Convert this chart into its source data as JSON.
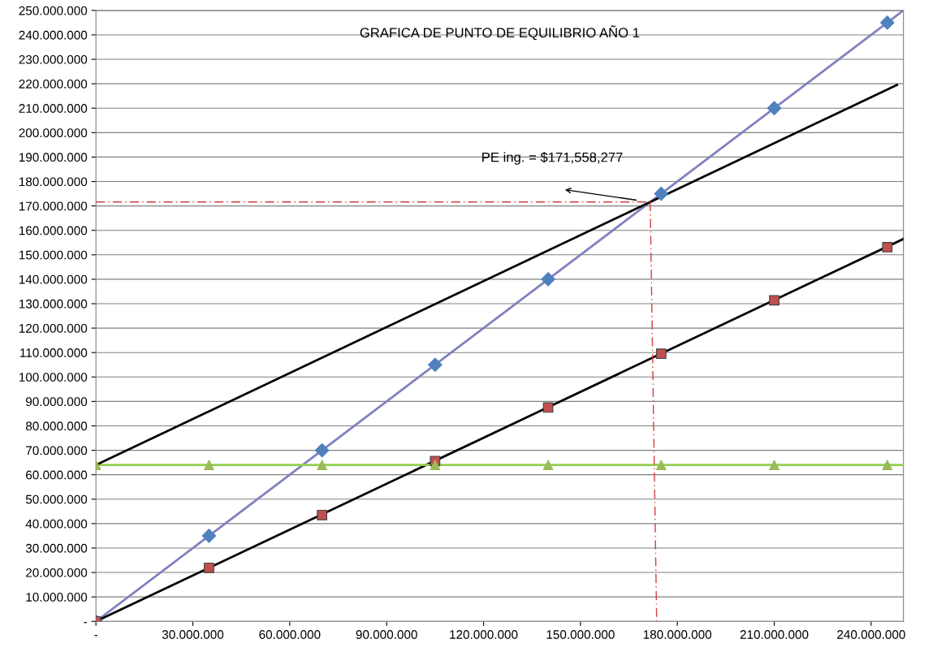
{
  "chart_data": {
    "type": "scatter",
    "title": "GRAFICA DE PUNTO DE EQUILIBRIO AÑO 1",
    "series": [
      {
        "type": "line",
        "color": "#8080c0",
        "x": [
          0,
          250000000
        ],
        "values": [
          0,
          250000000
        ]
      },
      {
        "type": "line",
        "color": "#000000",
        "x": [
          0,
          250000000
        ],
        "values": [
          0,
          156500000
        ]
      },
      {
        "type": "line",
        "color": "#92d050",
        "x": [
          0,
          250000000
        ],
        "values": [
          64000000,
          64000000
        ]
      },
      {
        "type": "line",
        "color": "#000000",
        "x": [
          0,
          248000000
        ],
        "values": [
          64000000,
          219500000
        ]
      },
      {
        "type": "line",
        "color": "#d04040",
        "line_style": "dashed",
        "x": [
          0,
          171600000
        ],
        "values": [
          171600000,
          171600000
        ]
      },
      {
        "type": "line",
        "color": "#d04040",
        "line_style": "dashed",
        "x": [
          171600000,
          173600000
        ],
        "values": [
          171600000,
          0
        ]
      },
      {
        "color": "#4f81bd",
        "marker": "diamond",
        "x": [
          0,
          35000000,
          70000000,
          105000000,
          140000000,
          175000000,
          210000000,
          245000000
        ],
        "values": [
          0,
          35000000,
          70000000,
          105000000,
          140000000,
          175000000,
          210000000,
          245000000
        ]
      },
      {
        "color": "#c0504d",
        "marker": "square",
        "x": [
          0,
          35000000,
          70000000,
          105000000,
          140000000,
          175000000,
          210000000,
          245000000
        ],
        "values": [
          0,
          21900000,
          43500000,
          65600000,
          87500000,
          109500000,
          131400000,
          153100000
        ]
      },
      {
        "color": "#9bbb59",
        "marker": "triangle",
        "x": [
          0,
          35000000,
          70000000,
          105000000,
          140000000,
          175000000,
          210000000,
          245000000
        ],
        "values": [
          64000000,
          64000000,
          64000000,
          64000000,
          64000000,
          64000000,
          64000000,
          64000000
        ]
      }
    ],
    "annotations": [
      "PE ing. = $171,558,277"
    ],
    "xlim": [
      0,
      250000000
    ],
    "xticks": [
      {
        "value": 0,
        "label": "-"
      },
      {
        "value": 30000000,
        "label": "30.000.000"
      },
      {
        "value": 60000000,
        "label": "60.000.000"
      },
      {
        "value": 90000000,
        "label": "90.000.000"
      },
      {
        "value": 120000000,
        "label": "120.000.000"
      },
      {
        "value": 150000000,
        "label": "150.000.000"
      },
      {
        "value": 180000000,
        "label": "180.000.000"
      },
      {
        "value": 210000000,
        "label": "210.000.000"
      },
      {
        "value": 240000000,
        "label": "240.000.000"
      }
    ],
    "ylim": [
      0,
      250000000
    ],
    "yticks": [
      {
        "value": 0,
        "label": "-"
      },
      {
        "value": 10000000,
        "label": "10.000.000"
      },
      {
        "value": 20000000,
        "label": "20.000.000"
      },
      {
        "value": 30000000,
        "label": "30.000.000"
      },
      {
        "value": 40000000,
        "label": "40.000.000"
      },
      {
        "value": 50000000,
        "label": "50.000.000"
      },
      {
        "value": 60000000,
        "label": "60.000.000"
      },
      {
        "value": 70000000,
        "label": "70.000.000"
      },
      {
        "value": 80000000,
        "label": "80.000.000"
      },
      {
        "value": 90000000,
        "label": "90.000.000"
      },
      {
        "value": 100000000,
        "label": "100.000.000"
      },
      {
        "value": 110000000,
        "label": "110.000.000"
      },
      {
        "value": 120000000,
        "label": "120.000.000"
      },
      {
        "value": 130000000,
        "label": "130.000.000"
      },
      {
        "value": 140000000,
        "label": "140.000.000"
      },
      {
        "value": 150000000,
        "label": "150.000.000"
      },
      {
        "value": 160000000,
        "label": "160.000.000"
      },
      {
        "value": 170000000,
        "label": "170.000.000"
      },
      {
        "value": 180000000,
        "label": "180.000.000"
      },
      {
        "value": 190000000,
        "label": "190.000.000"
      },
      {
        "value": 200000000,
        "label": "200.000.000"
      },
      {
        "value": 210000000,
        "label": "210.000.000"
      },
      {
        "value": 220000000,
        "label": "220.000.000"
      },
      {
        "value": 230000000,
        "label": "230.000.000"
      },
      {
        "value": 240000000,
        "label": "240.000.000"
      },
      {
        "value": 250000000,
        "label": "250.000.000"
      }
    ],
    "grid": "y",
    "legend": false
  }
}
